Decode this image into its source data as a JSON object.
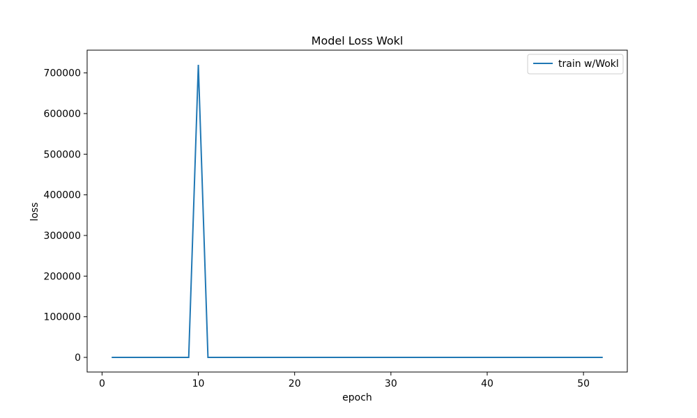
{
  "chart_data": {
    "type": "line",
    "title": "Model Loss Wokl",
    "xlabel": "epoch",
    "ylabel": "loss",
    "xlim": [
      -1.55,
      54.55
    ],
    "ylim": [
      -36000,
      756000
    ],
    "x_ticks": [
      0,
      10,
      20,
      30,
      40,
      50
    ],
    "y_ticks": [
      0,
      100000,
      200000,
      300000,
      400000,
      500000,
      600000,
      700000
    ],
    "grid": false,
    "legend_position": "top-right",
    "series": [
      {
        "name": "train w/Wokl",
        "color": "#1f77b4",
        "x": [
          1,
          2,
          3,
          4,
          5,
          6,
          7,
          8,
          9,
          10,
          11,
          12,
          13,
          14,
          15,
          16,
          17,
          18,
          19,
          20,
          21,
          22,
          23,
          24,
          25,
          26,
          27,
          28,
          29,
          30,
          31,
          32,
          33,
          34,
          35,
          36,
          37,
          38,
          39,
          40,
          41,
          42,
          43,
          44,
          45,
          46,
          47,
          48,
          49,
          50,
          51,
          52
        ],
        "values": [
          0,
          0,
          0,
          0,
          0,
          0,
          0,
          0,
          0,
          720000,
          0,
          0,
          0,
          0,
          0,
          0,
          0,
          0,
          0,
          0,
          0,
          0,
          0,
          0,
          0,
          0,
          0,
          0,
          0,
          0,
          0,
          0,
          0,
          0,
          0,
          0,
          0,
          0,
          0,
          0,
          0,
          0,
          0,
          0,
          0,
          0,
          0,
          0,
          0,
          0,
          0,
          0
        ]
      }
    ]
  }
}
